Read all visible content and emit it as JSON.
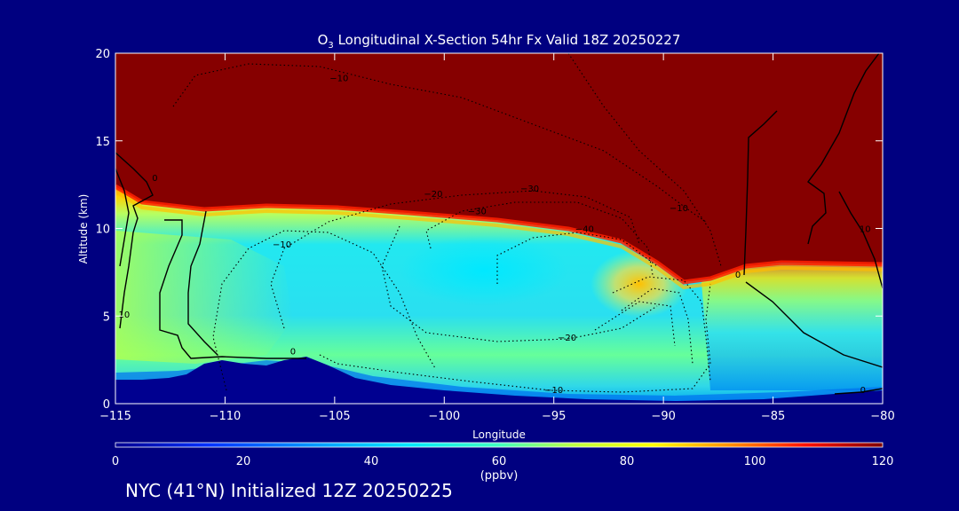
{
  "chart_data": {
    "type": "heatmap",
    "title_prefix": "O",
    "title_sub": "3",
    "title_rest": " Longitudinal X-Section 54hr  Fx Valid 18Z 20250227",
    "xlabel": "Longitude",
    "ylabel": "Altitude (km)",
    "xlim": [
      -115,
      -80
    ],
    "ylim": [
      0,
      20
    ],
    "x_ticks": [
      -115,
      -110,
      -105,
      -100,
      -95,
      -90,
      -85,
      -80
    ],
    "x_tick_labels": [
      "−115",
      "−110",
      "−105",
      "−100",
      "−95",
      "−90",
      "−85",
      "−80"
    ],
    "y_ticks": [
      0,
      5,
      10,
      15,
      20
    ],
    "y_tick_labels": [
      "0",
      "5",
      "10",
      "15",
      "20"
    ],
    "colorbar": {
      "min": 0,
      "max": 120,
      "unit": "(ppbv)",
      "ticks": [
        0,
        20,
        40,
        60,
        80,
        100,
        120
      ],
      "tick_labels": [
        "0",
        "20",
        "40",
        "60",
        "80",
        "100",
        "120"
      ]
    },
    "contour_labels": [
      {
        "text": "−10",
        "lon": -104.8,
        "alt": 18.4
      },
      {
        "text": "−20",
        "lon": -100.5,
        "alt": 11.8
      },
      {
        "text": "−30",
        "lon": -96.1,
        "alt": 12.1
      },
      {
        "text": "−30",
        "lon": -98.5,
        "alt": 10.8
      },
      {
        "text": "−40",
        "lon": -93.6,
        "alt": 9.8
      },
      {
        "text": "−10",
        "lon": -89.3,
        "alt": 11.0
      },
      {
        "text": "−10",
        "lon": -107.4,
        "alt": 8.9
      },
      {
        "text": "−20",
        "lon": -94.4,
        "alt": 3.6
      },
      {
        "text": "−10",
        "lon": -95.0,
        "alt": 0.6
      },
      {
        "text": "0",
        "lon": -113.2,
        "alt": 12.7
      },
      {
        "text": "0",
        "lon": -106.9,
        "alt": 2.8
      },
      {
        "text": "0",
        "lon": -86.6,
        "alt": 7.2
      },
      {
        "text": "10",
        "lon": -114.6,
        "alt": 4.9
      },
      {
        "text": "10",
        "lon": -80.8,
        "alt": 9.8
      },
      {
        "text": "0",
        "lon": -80.9,
        "alt": 0.6
      }
    ]
  },
  "footer": "NYC (41°N) Initialized 12Z 20250225"
}
